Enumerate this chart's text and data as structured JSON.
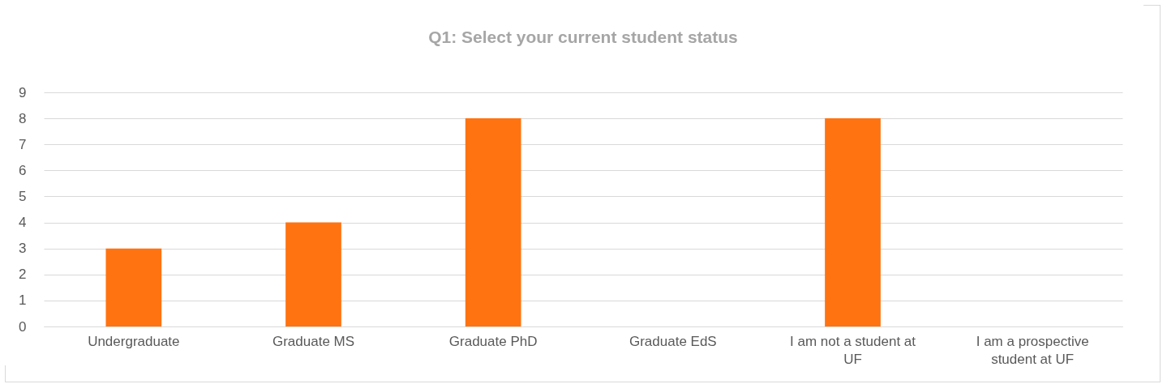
{
  "chart_data": {
    "type": "bar",
    "title": "Q1: Select your current student status",
    "categories": [
      "Undergraduate",
      "Graduate MS",
      "Graduate PhD",
      "Graduate EdS",
      "I am not a student at UF",
      "I am a prospective student at UF"
    ],
    "values": [
      3,
      4,
      8,
      0,
      8,
      0
    ],
    "color": "#ff7311",
    "ylim": [
      0,
      9
    ],
    "yticks": [
      0,
      1,
      2,
      3,
      4,
      5,
      6,
      7,
      8,
      9
    ],
    "grid": "y"
  }
}
